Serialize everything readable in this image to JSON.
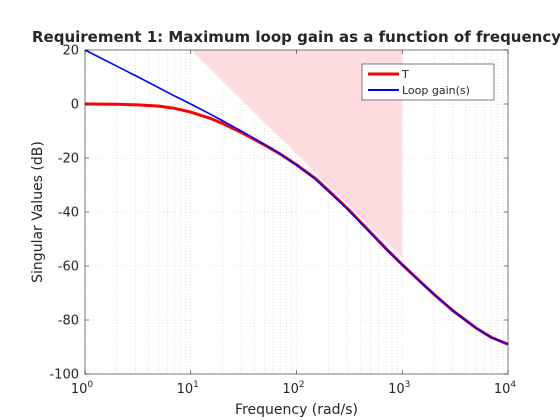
{
  "chart_data": {
    "type": "line",
    "title": "Requirement 1: Maximum loop gain as a function of frequency",
    "xlabel": "Frequency (rad/s)",
    "ylabel": "Singular Values (dB)",
    "xscale": "log",
    "xlim": [
      1,
      10000
    ],
    "ylim": [
      -100,
      20
    ],
    "xticks": [
      1,
      10,
      100,
      1000,
      10000
    ],
    "xtick_labels": [
      {
        "base": "10",
        "exp": "0"
      },
      {
        "base": "10",
        "exp": "1"
      },
      {
        "base": "10",
        "exp": "2"
      },
      {
        "base": "10",
        "exp": "3"
      },
      {
        "base": "10",
        "exp": "4"
      }
    ],
    "yticks": [
      20,
      0,
      -20,
      -40,
      -60,
      -80,
      -100
    ],
    "ytick_labels": [
      "20",
      "0",
      "-20",
      "-40",
      "-60",
      "-80",
      "-100"
    ],
    "grid": "minor dotted",
    "legend_position": "top-right",
    "requirement_region": {
      "color": "#ffdcdf",
      "boundary": [
        {
          "x": 10,
          "y": 20
        },
        {
          "x": 1000,
          "y": 20
        },
        {
          "x": 1000,
          "y": -57
        },
        {
          "x": 10,
          "y": 20
        }
      ]
    },
    "series": [
      {
        "name": "T",
        "color": "#ff0000",
        "points": [
          {
            "x": 1,
            "y": 0
          },
          {
            "x": 2,
            "y": -0.1
          },
          {
            "x": 3,
            "y": -0.3
          },
          {
            "x": 5,
            "y": -0.8
          },
          {
            "x": 7,
            "y": -1.6
          },
          {
            "x": 10,
            "y": -3
          },
          {
            "x": 15,
            "y": -5.2
          },
          {
            "x": 20,
            "y": -7.2
          },
          {
            "x": 30,
            "y": -10.5
          },
          {
            "x": 50,
            "y": -15.2
          },
          {
            "x": 70,
            "y": -18.5
          },
          {
            "x": 100,
            "y": -22.5
          },
          {
            "x": 150,
            "y": -27.5
          },
          {
            "x": 200,
            "y": -32
          },
          {
            "x": 300,
            "y": -38.5
          },
          {
            "x": 500,
            "y": -47.5
          },
          {
            "x": 700,
            "y": -53.5
          },
          {
            "x": 1000,
            "y": -59.5
          },
          {
            "x": 1500,
            "y": -66
          },
          {
            "x": 2000,
            "y": -70.5
          },
          {
            "x": 3000,
            "y": -76.5
          },
          {
            "x": 5000,
            "y": -83
          },
          {
            "x": 7000,
            "y": -86.5
          },
          {
            "x": 10000,
            "y": -89
          }
        ]
      },
      {
        "name": "Loop gain(s)",
        "color": "#0000ff",
        "points": [
          {
            "x": 1,
            "y": 20
          },
          {
            "x": 2,
            "y": 14
          },
          {
            "x": 3,
            "y": 10.5
          },
          {
            "x": 5,
            "y": 6
          },
          {
            "x": 7,
            "y": 3
          },
          {
            "x": 10,
            "y": 0
          },
          {
            "x": 15,
            "y": -3.6
          },
          {
            "x": 20,
            "y": -6.2
          },
          {
            "x": 30,
            "y": -10
          },
          {
            "x": 50,
            "y": -15
          },
          {
            "x": 70,
            "y": -18.5
          },
          {
            "x": 100,
            "y": -22.6
          },
          {
            "x": 150,
            "y": -27.8
          },
          {
            "x": 200,
            "y": -32.3
          },
          {
            "x": 300,
            "y": -38.8
          },
          {
            "x": 500,
            "y": -47.8
          },
          {
            "x": 700,
            "y": -53.7
          },
          {
            "x": 1000,
            "y": -59.6
          },
          {
            "x": 1500,
            "y": -66
          },
          {
            "x": 2000,
            "y": -70.5
          },
          {
            "x": 3000,
            "y": -76.5
          },
          {
            "x": 5000,
            "y": -83
          },
          {
            "x": 7000,
            "y": -86.5
          },
          {
            "x": 10000,
            "y": -89
          }
        ]
      }
    ]
  }
}
